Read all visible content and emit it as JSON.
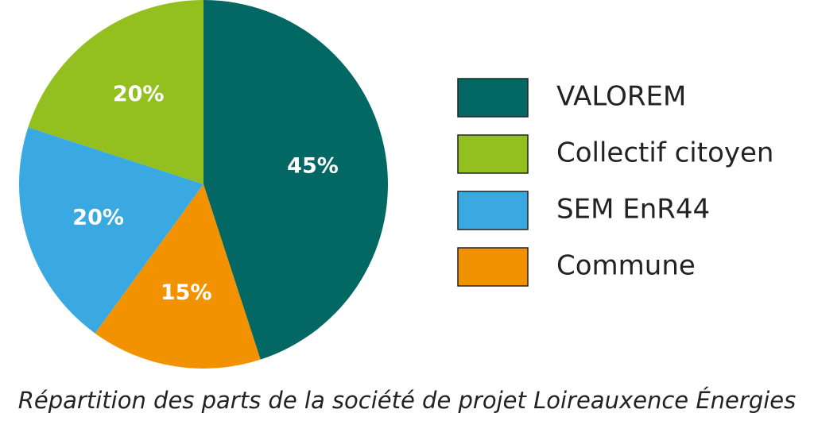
{
  "chart_data": {
    "type": "pie",
    "caption": "Répartition des parts de la société de projet Loireauxence Énergies",
    "categories": [
      "VALOREM",
      "Collectif citoyen",
      "SEM EnR44",
      "Commune"
    ],
    "values": [
      45,
      20,
      20,
      15
    ],
    "value_labels": [
      "45%",
      "20%",
      "20%",
      "15%"
    ],
    "colors": [
      "#036864",
      "#93c01f",
      "#3aa9e1",
      "#f39200"
    ],
    "legend": "right"
  }
}
